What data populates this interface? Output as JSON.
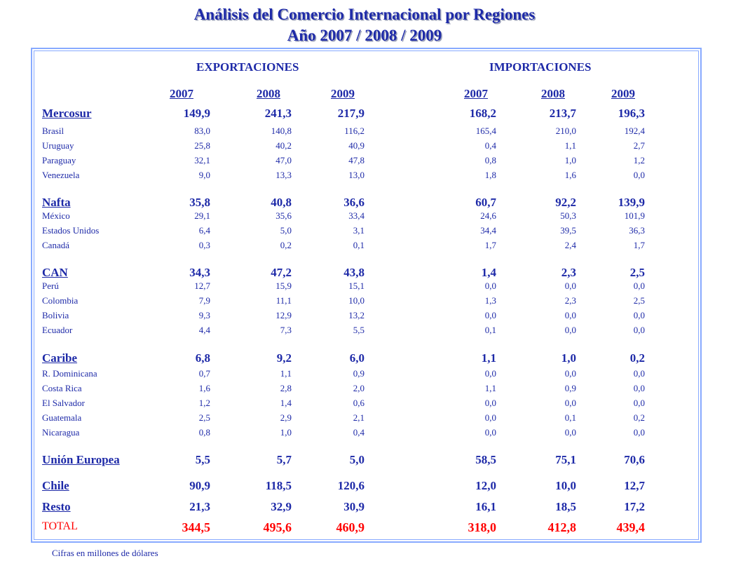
{
  "title_line1": "Análisis del Comercio Internacional por Regiones",
  "title_line2": "Año   2007 / 2008 / 2009",
  "header": {
    "exports_label": "EXPORTACIONES",
    "imports_label": "IMPORTACIONES",
    "years": [
      "2007",
      "2008",
      "2009",
      "2007",
      "2008",
      "2009"
    ]
  },
  "rows": [
    {
      "type": "grp",
      "label": "Mercosur",
      "values": [
        "149,9",
        "241,3",
        "217,9",
        "168,2",
        "213,7",
        "196,3"
      ]
    },
    {
      "type": "sub",
      "label": "Brasil",
      "values": [
        "83,0",
        "140,8",
        "116,2",
        "165,4",
        "210,0",
        "192,4"
      ]
    },
    {
      "type": "sub",
      "label": "Uruguay",
      "values": [
        "25,8",
        "40,2",
        "40,9",
        "0,4",
        "1,1",
        "2,7"
      ]
    },
    {
      "type": "sub",
      "label": "Paraguay",
      "values": [
        "32,1",
        "47,0",
        "47,8",
        "0,8",
        "1,0",
        "1,2"
      ]
    },
    {
      "type": "sub",
      "label": "Venezuela",
      "values": [
        "9,0",
        "13,3",
        "13,0",
        "1,8",
        "1,6",
        "0,0"
      ]
    },
    {
      "type": "grp",
      "label": "Nafta",
      "values": [
        "35,8",
        "40,8",
        "36,6",
        "60,7",
        "92,2",
        "139,9"
      ]
    },
    {
      "type": "sub",
      "label": "México",
      "values": [
        "29,1",
        "35,6",
        "33,4",
        "24,6",
        "50,3",
        "101,9"
      ]
    },
    {
      "type": "sub",
      "label": "Estados Unidos",
      "values": [
        "6,4",
        "5,0",
        "3,1",
        "34,4",
        "39,5",
        "36,3"
      ]
    },
    {
      "type": "sub",
      "label": "Canadá",
      "values": [
        "0,3",
        "0,2",
        "0,1",
        "1,7",
        "2,4",
        "1,7"
      ]
    },
    {
      "type": "grp",
      "label": "CAN",
      "values": [
        "34,3",
        "47,2",
        "43,8",
        "1,4",
        "2,3",
        "2,5"
      ]
    },
    {
      "type": "sub",
      "label": "Perú",
      "values": [
        "12,7",
        "15,9",
        "15,1",
        "0,0",
        "0,0",
        "0,0"
      ]
    },
    {
      "type": "sub",
      "label": "Colombia",
      "values": [
        "7,9",
        "11,1",
        "10,0",
        "1,3",
        "2,3",
        "2,5"
      ]
    },
    {
      "type": "sub",
      "label": "Bolivia",
      "values": [
        "9,3",
        "12,9",
        "13,2",
        "0,0",
        "0,0",
        "0,0"
      ]
    },
    {
      "type": "sub",
      "label": "Ecuador",
      "values": [
        "4,4",
        "7,3",
        "5,5",
        "0,1",
        "0,0",
        "0,0"
      ]
    },
    {
      "type": "grp",
      "label": "Caribe",
      "values": [
        "6,8",
        "9,2",
        "6,0",
        "1,1",
        "1,0",
        "0,2"
      ]
    },
    {
      "type": "sub",
      "label": "R. Dominicana",
      "values": [
        "0,7",
        "1,1",
        "0,9",
        "0,0",
        "0,0",
        "0,0"
      ]
    },
    {
      "type": "sub",
      "label": "Costa Rica",
      "values": [
        "1,6",
        "2,8",
        "2,0",
        "1,1",
        "0,9",
        "0,0"
      ]
    },
    {
      "type": "sub",
      "label": "El Salvador",
      "values": [
        "1,2",
        "1,4",
        "0,6",
        "0,0",
        "0,0",
        "0,0"
      ]
    },
    {
      "type": "sub",
      "label": "Guatemala",
      "values": [
        "2,5",
        "2,9",
        "2,1",
        "0,0",
        "0,1",
        "0,2"
      ]
    },
    {
      "type": "sub",
      "label": "Nicaragua",
      "values": [
        "0,8",
        "1,0",
        "0,4",
        "0,0",
        "0,0",
        "0,0"
      ]
    },
    {
      "type": "grp",
      "label": "Unión Europea",
      "values": [
        "5,5",
        "5,7",
        "5,0",
        "58,5",
        "75,1",
        "70,6"
      ]
    },
    {
      "type": "grp",
      "label": "Chile",
      "values": [
        "90,9",
        "118,5",
        "120,6",
        "12,0",
        "10,0",
        "12,7"
      ]
    },
    {
      "type": "grp",
      "label": "Resto",
      "values": [
        "21,3",
        "32,9",
        "30,9",
        "16,1",
        "18,5",
        "17,2"
      ]
    },
    {
      "type": "total",
      "label": "TOTAL",
      "values": [
        "344,5",
        "495,6",
        "460,9",
        "318,0",
        "412,8",
        "439,4"
      ]
    }
  ],
  "footnote": "Cifras en millones de dólares",
  "colors": {
    "text": "#1e2aa8",
    "total": "#ff0000",
    "border": "#88aaff"
  }
}
